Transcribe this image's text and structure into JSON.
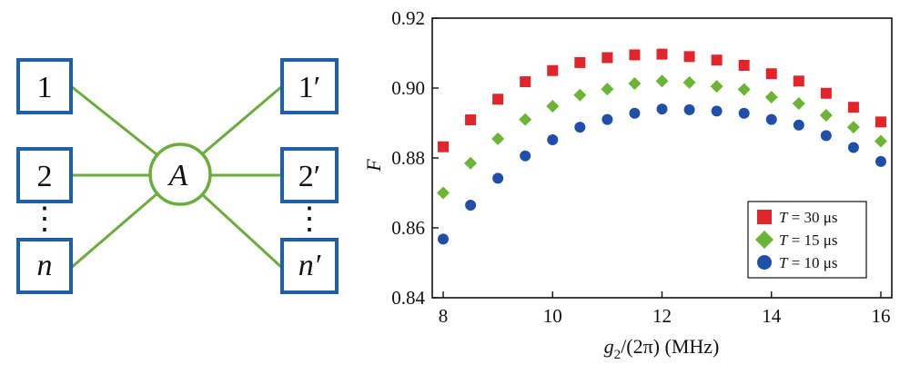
{
  "diagram": {
    "left_nodes": [
      "1",
      "2",
      "n"
    ],
    "right_nodes": [
      "1′",
      "2′",
      "n′"
    ],
    "hub_label": "A",
    "ellipsis": "⋮",
    "edge_color": "#6aad3a",
    "box_color": "#1f5fa8"
  },
  "chart_data": {
    "type": "scatter",
    "xlabel_parts": {
      "g": "g",
      "sub": "2",
      "rest": "/(2π) (MHz)"
    },
    "ylabel": "F",
    "xlim": [
      7.8,
      16.2
    ],
    "ylim": [
      0.84,
      0.92
    ],
    "x_ticks": [
      8,
      10,
      12,
      14,
      16
    ],
    "y_ticks": [
      0.84,
      0.86,
      0.88,
      0.9,
      0.92
    ],
    "y_tick_labels": [
      "0.84",
      "0.86",
      "0.88",
      "0.90",
      "0.92"
    ],
    "x": [
      8,
      8.5,
      9,
      9.5,
      10,
      10.5,
      11,
      11.5,
      12,
      12.5,
      13,
      13.5,
      14,
      14.5,
      15,
      15.5,
      16
    ],
    "series": [
      {
        "name": "T = 30 μs",
        "T": "T",
        "rest": " = 30 μs",
        "marker": "square",
        "color": "#e2252b",
        "values": [
          0.8832,
          0.8909,
          0.8968,
          0.9018,
          0.905,
          0.9073,
          0.9087,
          0.9095,
          0.9097,
          0.909,
          0.908,
          0.9065,
          0.9041,
          0.902,
          0.8985,
          0.8945,
          0.8903
        ]
      },
      {
        "name": "T = 15 μs",
        "T": "T",
        "rest": " = 15 μs",
        "marker": "diamond",
        "color": "#6ab533",
        "values": [
          0.87,
          0.8785,
          0.8855,
          0.891,
          0.8948,
          0.898,
          0.8997,
          0.9013,
          0.902,
          0.9016,
          0.9005,
          0.8996,
          0.8974,
          0.8956,
          0.8922,
          0.8888,
          0.8848
        ]
      },
      {
        "name": "T = 10 μs",
        "T": "T",
        "rest": " = 10 μs",
        "marker": "circle",
        "color": "#1f4fa8",
        "values": [
          0.8568,
          0.8665,
          0.8742,
          0.8806,
          0.8852,
          0.8888,
          0.891,
          0.8928,
          0.894,
          0.8938,
          0.8934,
          0.8928,
          0.891,
          0.8894,
          0.8864,
          0.883,
          0.879
        ]
      }
    ],
    "legend_position": "bottom-right",
    "grid": false
  }
}
